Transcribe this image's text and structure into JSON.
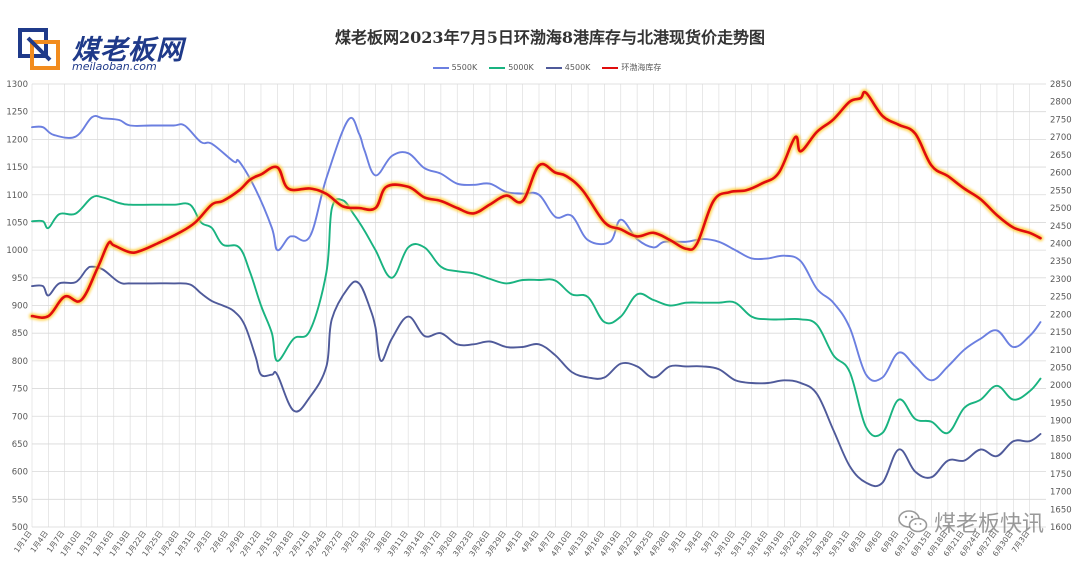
{
  "brand": {
    "name": "煤老板网",
    "url": "meilaoban.com",
    "watermark": "煤老板快讯"
  },
  "colors": {
    "s5500": "#6b7fe0",
    "s5000": "#19b380",
    "s4500": "#4f5a9a",
    "inventory": "#e00d0d",
    "inventory_glow": "#ffcc33",
    "grid": "#d9d9d9",
    "axis_text": "#595959",
    "brand": "#1f3a8a"
  },
  "chart_data": {
    "type": "line",
    "title": "煤老板网2023年7月5日环渤海8港库存与北港现货价走势图",
    "ylim_left": [
      500,
      1300
    ],
    "ylim_right": [
      1600,
      2850
    ],
    "left_ticks": [
      500,
      550,
      600,
      650,
      700,
      750,
      800,
      850,
      900,
      950,
      1000,
      1050,
      1100,
      1150,
      1200,
      1250,
      1300
    ],
    "right_ticks": [
      1600,
      1650,
      1700,
      1750,
      1800,
      1850,
      1900,
      1950,
      2000,
      2050,
      2100,
      2150,
      2200,
      2250,
      2300,
      2350,
      2400,
      2450,
      2500,
      2550,
      2600,
      2650,
      2700,
      2750,
      2800,
      2850
    ],
    "x_labels": [
      "1月1日",
      "1月4日",
      "1月7日",
      "1月10日",
      "1月13日",
      "1月16日",
      "1月19日",
      "1月22日",
      "1月25日",
      "1月28日",
      "1月31日",
      "2月3日",
      "2月6日",
      "2月9日",
      "2月12日",
      "2月15日",
      "2月18日",
      "2月21日",
      "2月24日",
      "2月27日",
      "3月2日",
      "3月5日",
      "3月8日",
      "3月11日",
      "3月14日",
      "3月17日",
      "3月20日",
      "3月23日",
      "3月26日",
      "3月29日",
      "4月1日",
      "4月4日",
      "4月7日",
      "4月10日",
      "4月13日",
      "4月16日",
      "4月19日",
      "4月22日",
      "4月25日",
      "4月28日",
      "5月1日",
      "5月4日",
      "5月7日",
      "5月10日",
      "5月13日",
      "5月16日",
      "5月19日",
      "5月22日",
      "5月25日",
      "5月28日",
      "5月31日",
      "6月3日",
      "6月6日",
      "6月9日",
      "6月12日",
      "6月15日",
      "6月18日",
      "6月21日",
      "6月24日",
      "6月27日",
      "6月30日",
      "7月3日"
    ],
    "x_day_start": 0,
    "x_day_end": 186,
    "legend_position": "top-center",
    "series": [
      {
        "name": "5500K",
        "axis": "left",
        "color_key": "s5500",
        "x_dates": [
          "1月1日",
          "1月3日",
          "1月5日",
          "1月9日",
          "1月12日",
          "1月14日",
          "1月17日",
          "1月19日",
          "1月23日",
          "1月27日",
          "1月29日",
          "2月1日",
          "2月3日",
          "2月7日",
          "2月8日",
          "2月11日",
          "2月14日",
          "2月15日",
          "2月17日",
          "2月18日",
          "2月21日",
          "2月24日",
          "2月28日",
          "3月2日",
          "3月3日",
          "3月5日",
          "3月8日",
          "3月11日",
          "3月14日",
          "3月17日",
          "3月20日",
          "3月23日",
          "3月26日",
          "3月29日",
          "4月1日",
          "4月4日",
          "4月7日",
          "4月10日",
          "4月13日",
          "4月17日",
          "4月19日",
          "4月22日",
          "4月25日",
          "4月27日",
          "5月1日",
          "5月4日",
          "5月7日",
          "5月10日",
          "5月13日",
          "5月16日",
          "5月19日",
          "5月22日",
          "5月25日",
          "5月28日",
          "5月31日",
          "6月3日",
          "6月6日",
          "6月9日",
          "6月12日",
          "6月15日",
          "6月18日",
          "6月21日",
          "6月24日",
          "6月27日",
          "6月30日",
          "7月3日",
          "7月5日"
        ],
        "values": [
          1222,
          1222,
          1208,
          1205,
          1240,
          1238,
          1235,
          1225,
          1225,
          1225,
          1225,
          1195,
          1192,
          1160,
          1160,
          1110,
          1040,
          1000,
          1022,
          1025,
          1025,
          1130,
          1235,
          1210,
          1180,
          1135,
          1170,
          1175,
          1148,
          1138,
          1120,
          1118,
          1120,
          1105,
          1102,
          1100,
          1060,
          1062,
          1018,
          1015,
          1055,
          1020,
          1005,
          1015,
          1015,
          1020,
          1015,
          1000,
          985,
          985,
          990,
          980,
          930,
          905,
          860,
          775,
          770,
          815,
          790,
          765,
          790,
          820,
          840,
          855,
          825,
          845,
          870
        ]
      },
      {
        "name": "5000K",
        "axis": "left",
        "color_key": "s5000",
        "x_dates": [
          "1月1日",
          "1月3日",
          "1月4日",
          "1月6日",
          "1月9日",
          "1月12日",
          "1月14日",
          "1月17日",
          "1月19日",
          "1月23日",
          "1月27日",
          "1月30日",
          "2月1日",
          "2月3日",
          "2月5日",
          "2月8日",
          "2月10日",
          "2月12日",
          "2月14日",
          "2月15日",
          "2月18日",
          "2月21日",
          "2月24日",
          "2月25日",
          "2月27日",
          "3月1日",
          "3月3日",
          "3月5日",
          "3月8日",
          "3月11日",
          "3月14日",
          "3月17日",
          "3月20日",
          "3月23日",
          "3月26日",
          "3月29日",
          "4月1日",
          "4月4日",
          "4月7日",
          "4月10日",
          "4月13日",
          "4月16日",
          "4月19日",
          "4月22日",
          "4月25日",
          "4月28日",
          "5月1日",
          "5月4日",
          "5月7日",
          "5月10日",
          "5月13日",
          "5月16日",
          "5月19日",
          "5月22日",
          "5月25日",
          "5月28日",
          "5月31日",
          "6月3日",
          "6月6日",
          "6月9日",
          "6月12日",
          "6月15日",
          "6月18日",
          "6月21日",
          "6月24日",
          "6月27日",
          "6月30日",
          "7月3日",
          "7月5日"
        ],
        "values": [
          1052,
          1052,
          1040,
          1065,
          1066,
          1095,
          1095,
          1085,
          1082,
          1082,
          1082,
          1082,
          1050,
          1040,
          1010,
          1005,
          960,
          900,
          850,
          800,
          840,
          855,
          960,
          1075,
          1090,
          1065,
          1035,
          1000,
          950,
          1005,
          1005,
          970,
          962,
          958,
          948,
          940,
          946,
          946,
          945,
          920,
          915,
          870,
          880,
          920,
          910,
          900,
          905,
          905,
          905,
          905,
          880,
          875,
          875,
          875,
          865,
          810,
          780,
          680,
          670,
          730,
          695,
          690,
          670,
          715,
          730,
          755,
          730,
          745,
          768
        ]
      },
      {
        "name": "4500K",
        "axis": "left",
        "color_key": "s4500",
        "x_dates": [
          "1月1日",
          "1月3日",
          "1月4日",
          "1月6日",
          "1月9日",
          "1月11日",
          "1月12日",
          "1月14日",
          "1月17日",
          "1月19日",
          "1月23日",
          "1月27日",
          "1月30日",
          "2月1日",
          "2月3日",
          "2月5日",
          "2月7日",
          "2月9日",
          "2月11日",
          "2月12日",
          "2月14日",
          "2月15日",
          "2月18日",
          "2月21日",
          "2月24日",
          "2月25日",
          "2月28日",
          "3月2日",
          "3月4日",
          "3月5日",
          "3月6日",
          "3月8日",
          "3月11日",
          "3月14日",
          "3月17日",
          "3月20日",
          "3月23日",
          "3月26日",
          "3月29日",
          "4月1日",
          "4月4日",
          "4月7日",
          "4月10日",
          "4月13日",
          "4月16日",
          "4月19日",
          "4月22日",
          "4月25日",
          "4月28日",
          "5月1日",
          "5月4日",
          "5月7日",
          "5月10日",
          "5月13日",
          "5月16日",
          "5月19日",
          "5月22日",
          "5月25日",
          "5月28日",
          "5月31日",
          "6月3日",
          "6月6日",
          "6月9日",
          "6月12日",
          "6月15日",
          "6月18日",
          "6月21日",
          "6月24日",
          "6月27日",
          "6月30日",
          "7月3日",
          "7月5日"
        ],
        "values": [
          935,
          935,
          918,
          940,
          942,
          965,
          970,
          965,
          942,
          940,
          940,
          940,
          938,
          922,
          908,
          900,
          890,
          865,
          808,
          775,
          775,
          775,
          710,
          735,
          790,
          875,
          932,
          940,
          895,
          860,
          800,
          840,
          880,
          845,
          850,
          830,
          830,
          835,
          825,
          825,
          830,
          810,
          780,
          770,
          770,
          795,
          790,
          770,
          790,
          790,
          790,
          785,
          765,
          760,
          760,
          765,
          760,
          740,
          675,
          610,
          580,
          580,
          640,
          600,
          590,
          620,
          620,
          640,
          628,
          655,
          655,
          668
        ]
      },
      {
        "name": "环渤海库存",
        "axis": "right",
        "color_key": "inventory",
        "x_dates": [
          "1月1日",
          "1月4日",
          "1月7日",
          "1月10日",
          "1月13日",
          "1月15日",
          "1月16日",
          "1月19日",
          "1月21日",
          "1月24日",
          "1月28日",
          "1月31日",
          "2月3日",
          "2月5日",
          "2月8日",
          "2月10日",
          "2月12日",
          "2月15日",
          "2月17日",
          "2月21日",
          "2月24日",
          "2月27日",
          "3月2日",
          "3月5日",
          "3月7日",
          "3月11日",
          "3月14日",
          "3月17日",
          "3月20日",
          "3月23日",
          "3月26日",
          "3月29日",
          "4月1日",
          "4月4日",
          "4月7日",
          "4月9日",
          "4月12日",
          "4月16日",
          "4月19日",
          "4月22日",
          "4月25日",
          "4月28日",
          "5月1日",
          "5月3日",
          "5月6日",
          "5月9日",
          "5月12日",
          "5月15日",
          "5月18日",
          "5月21日",
          "5月22日",
          "5月25日",
          "5月28日",
          "5月31日",
          "6月2日",
          "6月3日",
          "6月6日",
          "6月9日",
          "6月12日",
          "6月15日",
          "6月18日",
          "6月21日",
          "6月24日",
          "6月27日",
          "6月30日",
          "7月3日",
          "7月5日"
        ],
        "values": [
          2195,
          2195,
          2250,
          2240,
          2330,
          2400,
          2395,
          2375,
          2380,
          2400,
          2430,
          2460,
          2510,
          2520,
          2550,
          2580,
          2595,
          2615,
          2555,
          2555,
          2540,
          2505,
          2500,
          2500,
          2560,
          2560,
          2530,
          2520,
          2500,
          2485,
          2510,
          2535,
          2520,
          2620,
          2600,
          2590,
          2550,
          2460,
          2440,
          2420,
          2430,
          2410,
          2385,
          2400,
          2520,
          2545,
          2550,
          2570,
          2600,
          2700,
          2660,
          2715,
          2750,
          2800,
          2810,
          2825,
          2760,
          2735,
          2710,
          2620,
          2590,
          2555,
          2525,
          2480,
          2445,
          2430,
          2415
        ]
      }
    ]
  }
}
